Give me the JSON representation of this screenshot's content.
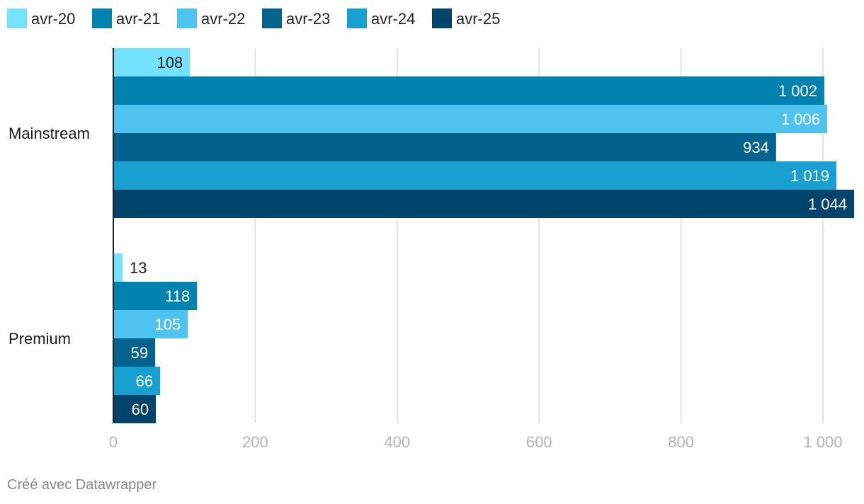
{
  "chart_data": {
    "type": "bar",
    "orientation": "horizontal",
    "categories": [
      "Mainstream",
      "Premium"
    ],
    "series": [
      {
        "name": "avr-20",
        "color": "#74e1fd",
        "values": [
          108,
          13
        ],
        "labels": [
          "108",
          "13"
        ]
      },
      {
        "name": "avr-21",
        "color": "#0282ae",
        "values": [
          1002,
          118
        ],
        "labels": [
          "1 002",
          "118"
        ]
      },
      {
        "name": "avr-22",
        "color": "#4ec3f0",
        "values": [
          1006,
          105
        ],
        "labels": [
          "1 006",
          "105"
        ]
      },
      {
        "name": "avr-23",
        "color": "#03638d",
        "values": [
          934,
          59
        ],
        "labels": [
          "934",
          "59"
        ]
      },
      {
        "name": "avr-24",
        "color": "#18a1d0",
        "values": [
          1019,
          66
        ],
        "labels": [
          "1 019",
          "66"
        ]
      },
      {
        "name": "avr-25",
        "color": "#02446c",
        "values": [
          1044,
          60
        ],
        "labels": [
          "1 044",
          "60"
        ]
      }
    ],
    "xlim": [
      0,
      1000
    ],
    "xticks": [
      0,
      200,
      400,
      600,
      800,
      1000
    ],
    "xtick_labels": [
      "0",
      "200",
      "400",
      "600",
      "800",
      "1 000"
    ],
    "grid": true,
    "legend": "top-left",
    "title": "",
    "xlabel": "",
    "ylabel": ""
  },
  "footer": {
    "note": "Créé avec Datawrapper"
  }
}
